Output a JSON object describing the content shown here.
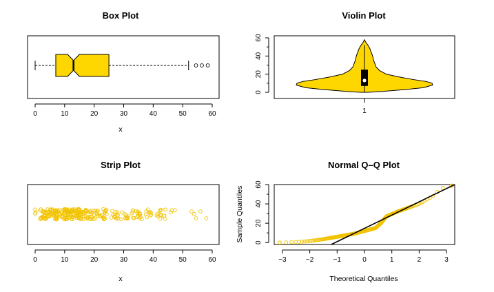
{
  "colors": {
    "fill": "#FFD700",
    "stroke": "#000000",
    "point": "#F2C300",
    "box": "#000000"
  },
  "chart_data": [
    {
      "type": "boxplot",
      "title": "Box Plot",
      "xlabel": "x",
      "orientation": "horizontal",
      "notched": true,
      "xlim": [
        0,
        60
      ],
      "xticks": [
        0,
        10,
        20,
        30,
        40,
        50,
        60
      ],
      "stats": {
        "whisker_low": 0,
        "q1": 7,
        "median": 13,
        "q3": 25,
        "whisker_high": 52,
        "notch_low": 11,
        "notch_high": 15
      },
      "outliers": [
        54.5,
        56.5,
        58.5
      ]
    },
    {
      "type": "violin",
      "title": "Violin Plot",
      "xlabel": "",
      "categories": [
        "1"
      ],
      "ylim": [
        0,
        60
      ],
      "yticks": [
        0,
        20,
        40,
        60
      ],
      "yticks_minor": [
        10,
        30,
        50
      ],
      "y_profile": [
        0,
        1,
        3,
        5,
        8,
        10,
        12,
        14,
        17,
        20,
        24,
        28,
        32,
        36,
        40,
        44,
        48,
        52,
        55,
        58
      ],
      "width_profile": [
        0.06,
        0.28,
        0.6,
        0.86,
        1.0,
        0.99,
        0.9,
        0.72,
        0.5,
        0.32,
        0.22,
        0.17,
        0.15,
        0.13,
        0.12,
        0.1,
        0.08,
        0.05,
        0.02,
        0
      ],
      "box": {
        "q1": 7,
        "median": 13,
        "q3": 25,
        "whisker_low": 0,
        "whisker_high": 52
      }
    },
    {
      "type": "strip",
      "title": "Strip Plot",
      "xlabel": "x",
      "xlim": [
        0,
        60
      ],
      "xticks": [
        0,
        10,
        20,
        30,
        40,
        50,
        60
      ],
      "n_points": 280,
      "density_profile": [
        {
          "x": 2,
          "weight": 10
        },
        {
          "x": 5,
          "weight": 30
        },
        {
          "x": 9,
          "weight": 35
        },
        {
          "x": 13,
          "weight": 35
        },
        {
          "x": 17,
          "weight": 30
        },
        {
          "x": 22,
          "weight": 22
        },
        {
          "x": 27,
          "weight": 16
        },
        {
          "x": 32,
          "weight": 12
        },
        {
          "x": 37,
          "weight": 10
        },
        {
          "x": 42,
          "weight": 7
        },
        {
          "x": 47,
          "weight": 4
        },
        {
          "x": 52,
          "weight": 2
        },
        {
          "x": 56,
          "weight": 1
        }
      ],
      "extreme_points": [
        53,
        54.5,
        56,
        58
      ]
    },
    {
      "type": "qqplot",
      "title": "Normal Q–Q Plot",
      "xlabel": "Theoretical Quantiles",
      "ylabel": "Sample Quantiles",
      "xlim": [
        -3.3,
        3.3
      ],
      "ylim": [
        -2,
        60
      ],
      "xticks": [
        -3,
        -2,
        -1,
        0,
        1,
        2,
        3
      ],
      "yticks": [
        0,
        20,
        40,
        60
      ],
      "yticks_minor": [
        10,
        30,
        50
      ],
      "theoretical": [
        -3,
        -2.5,
        -2,
        -1.5,
        -1.2,
        -0.8,
        -0.4,
        0,
        0.4,
        0.6,
        0.8,
        1.2,
        1.6,
        2.0,
        2.5,
        2.8,
        3.2
      ],
      "sample": [
        0,
        0.5,
        1.5,
        3.5,
        5,
        7,
        9,
        12,
        15,
        20,
        27,
        32,
        36,
        40,
        48,
        56,
        59
      ],
      "reference_line": {
        "intercept": 15,
        "slope": 14
      }
    }
  ]
}
